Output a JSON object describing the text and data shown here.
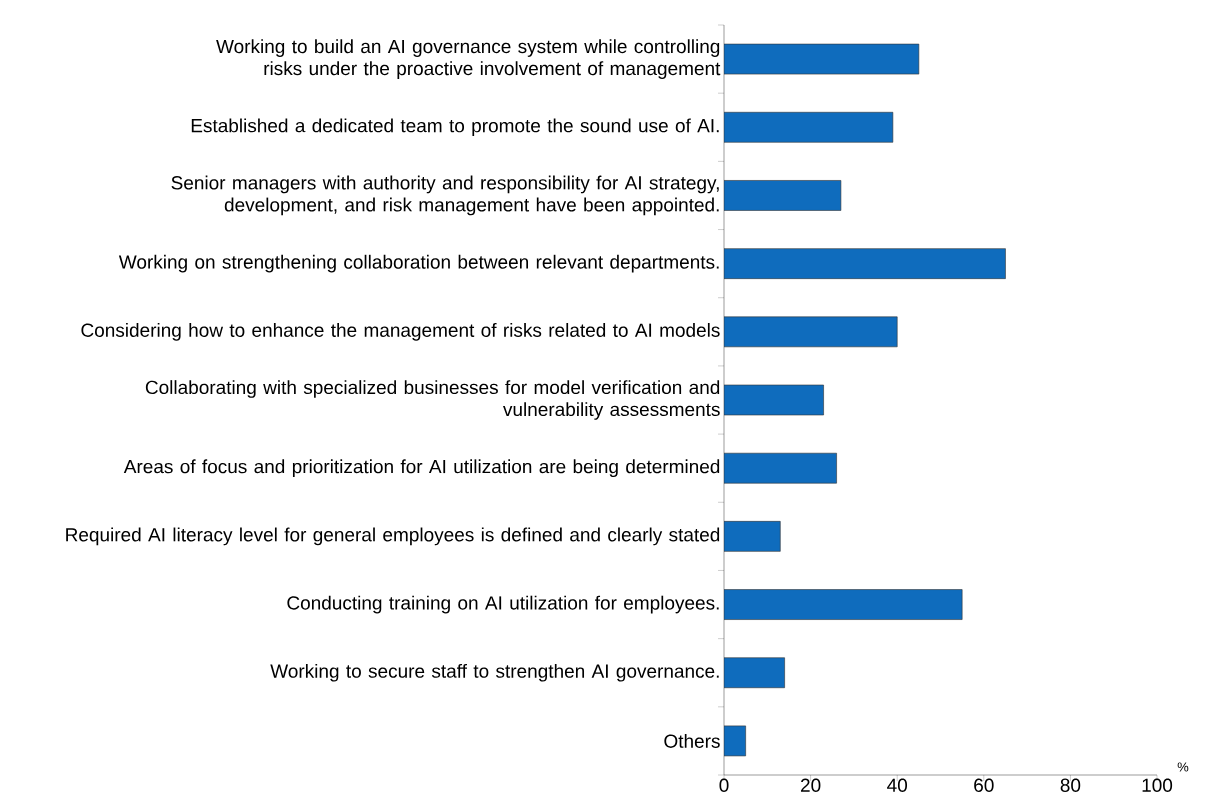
{
  "chart_data": {
    "type": "bar",
    "orientation": "horizontal",
    "categories": [
      "Working to build an AI governance system while controlling risks under the proactive involvement of management",
      "Established a dedicated team to promote the sound use of AI.",
      "Senior managers with authority and responsibility for AI strategy, development, and risk management have been appointed.",
      "Working on strengthening collaboration between relevant departments.",
      "Considering how to enhance the management of risks related to AI models",
      "Collaborating with specialized businesses for model verification and vulnerability assessments",
      "Areas of focus and prioritization for AI utilization are being determined",
      "Required AI literacy level for general employees is defined and clearly stated",
      "Conducting training on AI utilization for employees.",
      "Working to secure staff to strengthen AI governance.",
      "Others"
    ],
    "values": [
      45,
      39,
      27,
      65,
      40,
      23,
      26,
      13,
      55,
      14,
      5
    ],
    "color": "#0f6cbd",
    "xlabel": "%",
    "xlim": [
      0,
      100
    ],
    "xticks": [
      0,
      20,
      40,
      60,
      80,
      100
    ]
  }
}
